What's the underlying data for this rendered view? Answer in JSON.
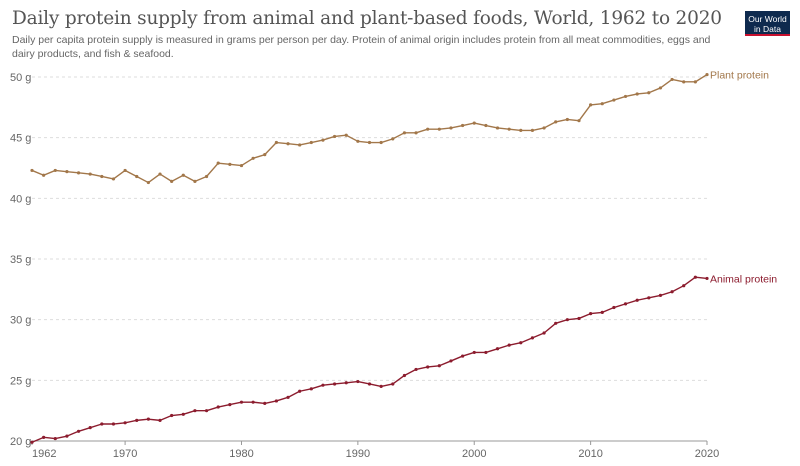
{
  "title": "Daily protein supply from animal and plant-based foods, World, 1962 to 2020",
  "subtitle": "Daily per capita protein supply is measured in grams per person per day. Protein of animal origin includes protein from all meat commodities, eggs and dairy products, and fish & seafood.",
  "logo": {
    "line1": "Our World",
    "line2": "in Data"
  },
  "colors": {
    "plant": "#a2774a",
    "animal": "#8c1c2e"
  },
  "chart_data": {
    "type": "line",
    "title": "Daily protein supply from animal and plant-based foods, World, 1962 to 2020",
    "xlabel": "",
    "ylabel": "",
    "xlim": [
      1962,
      2020
    ],
    "ylim": [
      20,
      50
    ],
    "x_ticks": [
      {
        "value": 1962,
        "label": "1962"
      },
      {
        "value": 1970,
        "label": "1970"
      },
      {
        "value": 1980,
        "label": "1980"
      },
      {
        "value": 1990,
        "label": "1990"
      },
      {
        "value": 2000,
        "label": "2000"
      },
      {
        "value": 2010,
        "label": "2010"
      },
      {
        "value": 2020,
        "label": "2020"
      }
    ],
    "y_ticks": [
      {
        "value": 20,
        "label": "20 g"
      },
      {
        "value": 25,
        "label": "25 g"
      },
      {
        "value": 30,
        "label": "30 g"
      },
      {
        "value": 35,
        "label": "35 g"
      },
      {
        "value": 40,
        "label": "40 g"
      },
      {
        "value": 45,
        "label": "45 g"
      },
      {
        "value": 50,
        "label": "50 g"
      }
    ],
    "grid": true,
    "x": [
      1962,
      1963,
      1964,
      1965,
      1966,
      1967,
      1968,
      1969,
      1970,
      1971,
      1972,
      1973,
      1974,
      1975,
      1976,
      1977,
      1978,
      1979,
      1980,
      1981,
      1982,
      1983,
      1984,
      1985,
      1986,
      1987,
      1988,
      1989,
      1990,
      1991,
      1992,
      1993,
      1994,
      1995,
      1996,
      1997,
      1998,
      1999,
      2000,
      2001,
      2002,
      2003,
      2004,
      2005,
      2006,
      2007,
      2008,
      2009,
      2010,
      2011,
      2012,
      2013,
      2014,
      2015,
      2016,
      2017,
      2018,
      2019,
      2020
    ],
    "series": [
      {
        "name": "Plant protein",
        "color": "#a2774a",
        "values": [
          42.3,
          41.9,
          42.3,
          42.2,
          42.1,
          42.0,
          41.8,
          41.6,
          42.3,
          41.8,
          41.3,
          42.0,
          41.4,
          41.9,
          41.4,
          41.8,
          42.9,
          42.8,
          42.7,
          43.3,
          43.6,
          44.6,
          44.5,
          44.4,
          44.6,
          44.8,
          45.1,
          45.2,
          44.7,
          44.6,
          44.6,
          44.9,
          45.4,
          45.4,
          45.7,
          45.7,
          45.8,
          46.0,
          46.2,
          46.0,
          45.8,
          45.7,
          45.6,
          45.6,
          45.8,
          46.3,
          46.5,
          46.4,
          47.7,
          47.8,
          48.1,
          48.4,
          48.6,
          48.7,
          49.1,
          49.8,
          49.6,
          49.6,
          50.2
        ]
      },
      {
        "name": "Animal protein",
        "color": "#8c1c2e",
        "values": [
          19.9,
          20.3,
          20.2,
          20.4,
          20.8,
          21.1,
          21.4,
          21.4,
          21.5,
          21.7,
          21.8,
          21.7,
          22.1,
          22.2,
          22.5,
          22.5,
          22.8,
          23.0,
          23.2,
          23.2,
          23.1,
          23.3,
          23.6,
          24.1,
          24.3,
          24.6,
          24.7,
          24.8,
          24.9,
          24.7,
          24.5,
          24.7,
          25.4,
          25.9,
          26.1,
          26.2,
          26.6,
          27.0,
          27.3,
          27.3,
          27.6,
          27.9,
          28.1,
          28.5,
          28.9,
          29.7,
          30.0,
          30.1,
          30.5,
          30.6,
          31.0,
          31.3,
          31.6,
          31.8,
          32.0,
          32.3,
          32.8,
          33.5,
          33.4
        ]
      }
    ]
  }
}
